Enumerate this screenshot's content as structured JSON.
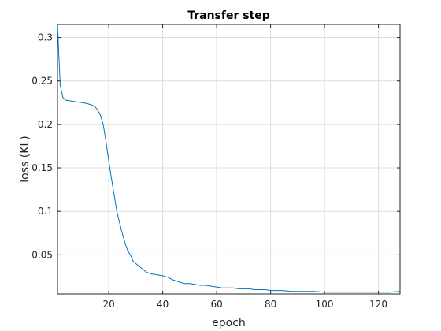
{
  "chart_data": {
    "type": "line",
    "title": "Transfer step",
    "xlabel": "epoch",
    "ylabel": "loss (KL)",
    "xlim": [
      1,
      128
    ],
    "ylim": [
      0.005,
      0.315
    ],
    "xticks": [
      20,
      40,
      60,
      80,
      100,
      120
    ],
    "yticks": [
      0.05,
      0.1,
      0.15,
      0.2,
      0.25,
      0.3
    ],
    "ytick_labels": [
      "0.05",
      "0.1",
      "0.15",
      "0.2",
      "0.25",
      "0.3"
    ],
    "grid": true,
    "colors": {
      "line": "#0072bd",
      "grid": "#dcdcdc",
      "axis": "#262626"
    },
    "series": [
      {
        "x": [
          1,
          2,
          3,
          4,
          6,
          8,
          10,
          12,
          14,
          15,
          16,
          17,
          18,
          19,
          20,
          21,
          22,
          23,
          24,
          25,
          26,
          27,
          28,
          29,
          30,
          32,
          34,
          36,
          38,
          40,
          42,
          44,
          46,
          48,
          50,
          52,
          54,
          56,
          58,
          60,
          62,
          64,
          66,
          68,
          70,
          72,
          74,
          76,
          78,
          80,
          84,
          88,
          92,
          96,
          100,
          104,
          108,
          112,
          116,
          120,
          124,
          128
        ],
        "values": [
          0.315,
          0.245,
          0.231,
          0.228,
          0.227,
          0.226,
          0.225,
          0.224,
          0.222,
          0.22,
          0.216,
          0.21,
          0.199,
          0.18,
          0.158,
          0.138,
          0.119,
          0.1,
          0.087,
          0.075,
          0.064,
          0.055,
          0.05,
          0.043,
          0.04,
          0.035,
          0.03,
          0.028,
          0.027,
          0.026,
          0.024,
          0.021,
          0.019,
          0.017,
          0.017,
          0.016,
          0.015,
          0.015,
          0.014,
          0.013,
          0.012,
          0.012,
          0.012,
          0.011,
          0.011,
          0.011,
          0.01,
          0.01,
          0.01,
          0.009,
          0.009,
          0.008,
          0.008,
          0.008,
          0.007,
          0.007,
          0.007,
          0.007,
          0.007,
          0.007,
          0.007,
          0.008
        ]
      }
    ]
  }
}
